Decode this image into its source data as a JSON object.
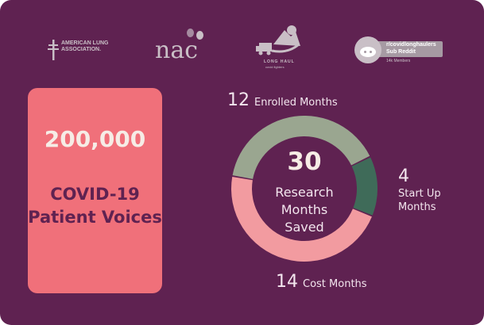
{
  "logos": {
    "ala": "AMERICAN LUNG ASSOCIATION.",
    "nac": "nac",
    "longhaul": {
      "title": "LONG HAUL",
      "subtitle": "covid fighters"
    },
    "reddit": {
      "name": "r/covidlonghaulers",
      "type": "Sub Reddit",
      "members": "14k Members"
    }
  },
  "card": {
    "number": "200,000",
    "label": "COVID-19 Patient Voices"
  },
  "colors": {
    "background": "#5f2251",
    "card": "#f0707a",
    "enrolled": "#9aa690",
    "startup": "#3f6b59",
    "cost": "#f29ba0"
  },
  "chart_data": {
    "type": "pie",
    "title": "30",
    "center_label": "Research Months Saved",
    "segments": [
      {
        "name": "Enrolled Months",
        "value": 12,
        "color": "#9aa690"
      },
      {
        "name": "Start Up Months",
        "value": 4,
        "color": "#3f6b59"
      },
      {
        "name": "Cost Months",
        "value": 14,
        "color": "#f29ba0"
      }
    ],
    "labels": {
      "enrolled": {
        "value": "12",
        "text": "Enrolled Months"
      },
      "startup": {
        "value": "4",
        "text": "Start Up Months"
      },
      "cost": {
        "value": "14",
        "text": "Cost Months"
      }
    }
  }
}
